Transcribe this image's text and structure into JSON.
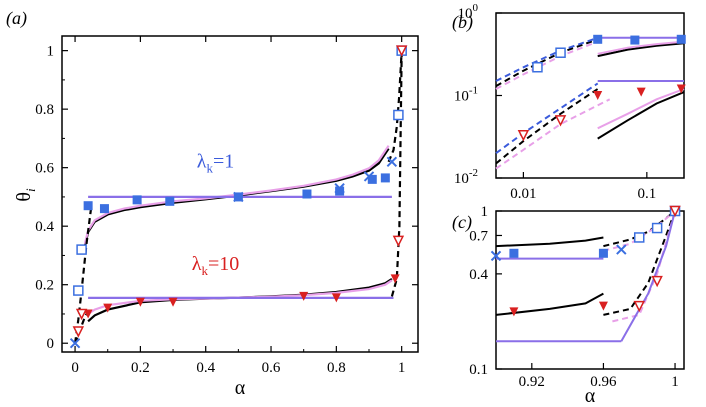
{
  "chart_data": [
    {
      "panel": "(a)",
      "type": "line",
      "xlabel": "α",
      "ylabel_main": "θ",
      "ylabel_sub": "i",
      "xlim": [
        -0.04,
        1.05
      ],
      "ylim": [
        -0.03,
        1.05
      ],
      "xticks": [
        "0",
        "0.2",
        "0.4",
        "0.6",
        "0.8",
        "1"
      ],
      "yticks": [
        "0",
        "0.2",
        "0.4",
        "0.6",
        "0.8",
        "1"
      ],
      "annotations": [
        {
          "text": "λ",
          "sub": "k",
          "rest": "=1",
          "color": "#3b5bdb",
          "x": 0.43,
          "y": 0.6
        },
        {
          "text": "λ",
          "sub": "k",
          "rest": "=10",
          "color": "#d92020",
          "x": 0.43,
          "y": 0.25
        }
      ],
      "series": [
        {
          "name": "λk=1 solid theory",
          "color": "#000000",
          "style": "solid",
          "x": [
            0.03,
            0.04,
            0.06,
            0.1,
            0.15,
            0.2,
            0.3,
            0.4,
            0.5,
            0.6,
            0.7,
            0.8,
            0.85,
            0.9,
            0.93,
            0.96
          ],
          "y": [
            0.33,
            0.38,
            0.415,
            0.44,
            0.455,
            0.465,
            0.48,
            0.492,
            0.505,
            0.52,
            0.535,
            0.555,
            0.57,
            0.59,
            0.615,
            0.665
          ]
        },
        {
          "name": "λk=1 pink theory",
          "color": "#e8a0e8",
          "style": "solid",
          "x": [
            0.03,
            0.04,
            0.06,
            0.1,
            0.15,
            0.2,
            0.3,
            0.4,
            0.5,
            0.6,
            0.7,
            0.8,
            0.85,
            0.9,
            0.93,
            0.96
          ],
          "y": [
            0.34,
            0.385,
            0.42,
            0.445,
            0.46,
            0.47,
            0.485,
            0.495,
            0.508,
            0.522,
            0.538,
            0.56,
            0.576,
            0.598,
            0.625,
            0.675
          ]
        },
        {
          "name": "λk=1 purple step",
          "color": "#8a6fe8",
          "style": "solid",
          "x": [
            0.04,
            0.97
          ],
          "y": [
            0.5,
            0.5
          ]
        },
        {
          "name": "λk=1 dashed left",
          "color": "#000000",
          "style": "dashed",
          "x": [
            0.0,
            0.01,
            0.02,
            0.035,
            0.05
          ],
          "y": [
            0.0,
            0.08,
            0.18,
            0.34,
            0.47
          ]
        },
        {
          "name": "λk=1 dashed right",
          "color": "#000000",
          "style": "dashed",
          "x": [
            0.96,
            0.975,
            0.985,
            0.992,
            1.0
          ],
          "y": [
            0.62,
            0.66,
            0.74,
            0.84,
            1.0
          ]
        },
        {
          "name": "λk=10 solid theory",
          "color": "#000000",
          "style": "solid",
          "x": [
            0.04,
            0.06,
            0.1,
            0.2,
            0.3,
            0.4,
            0.5,
            0.6,
            0.7,
            0.8,
            0.9,
            0.95,
            0.97
          ],
          "y": [
            0.075,
            0.095,
            0.115,
            0.14,
            0.148,
            0.152,
            0.156,
            0.16,
            0.166,
            0.175,
            0.19,
            0.205,
            0.22
          ]
        },
        {
          "name": "λk=10 pink theory",
          "color": "#e8a0e8",
          "style": "solid",
          "x": [
            0.04,
            0.06,
            0.1,
            0.2,
            0.3,
            0.4,
            0.5,
            0.6,
            0.7,
            0.8,
            0.9,
            0.95,
            0.97
          ],
          "y": [
            0.1,
            0.115,
            0.13,
            0.145,
            0.15,
            0.153,
            0.156,
            0.159,
            0.164,
            0.172,
            0.185,
            0.2,
            0.215
          ]
        },
        {
          "name": "λk=10 purple step",
          "color": "#8a6fe8",
          "style": "solid",
          "x": [
            0.04,
            0.975
          ],
          "y": [
            0.155,
            0.155
          ]
        },
        {
          "name": "λk=10 dashed left",
          "color": "#000000",
          "style": "dashed",
          "x": [
            0.0,
            0.01,
            0.02,
            0.03,
            0.045
          ],
          "y": [
            0.0,
            0.03,
            0.06,
            0.09,
            0.12
          ]
        },
        {
          "name": "λk=10 dashed right",
          "color": "#000000",
          "style": "dashed",
          "x": [
            0.97,
            0.985,
            0.993,
            1.0
          ],
          "y": [
            0.16,
            0.22,
            0.4,
            1.0
          ]
        }
      ],
      "points": [
        {
          "series": "λk=1 sim",
          "marker": "square",
          "color": "#3b6fe0",
          "x": [
            0.04,
            0.09,
            0.19,
            0.29,
            0.5,
            0.71,
            0.81,
            0.91,
            0.95
          ],
          "y": [
            0.47,
            0.46,
            0.49,
            0.485,
            0.5,
            0.51,
            0.52,
            0.56,
            0.565
          ]
        },
        {
          "series": "λk=1 open",
          "marker": "square-open",
          "color": "#3b6fe0",
          "x": [
            0.01,
            0.02,
            0.99,
            1.0
          ],
          "y": [
            0.18,
            0.32,
            0.78,
            1.0
          ]
        },
        {
          "series": "λk=1 cross",
          "marker": "x",
          "color": "#3b6fe0",
          "x": [
            0.0,
            0.5,
            0.81,
            0.9,
            0.97
          ],
          "y": [
            0.0,
            0.5,
            0.53,
            0.57,
            0.62
          ]
        },
        {
          "series": "λk=10 sim",
          "marker": "triangle-down",
          "color": "#d92020",
          "x": [
            0.04,
            0.1,
            0.2,
            0.3,
            0.7,
            0.8,
            0.98
          ],
          "y": [
            0.1,
            0.12,
            0.14,
            0.14,
            0.16,
            0.155,
            0.22
          ]
        },
        {
          "series": "λk=10 open",
          "marker": "triangle-down-open",
          "color": "#d92020",
          "x": [
            0.01,
            0.02,
            0.99,
            1.0
          ],
          "y": [
            0.04,
            0.1,
            0.35,
            1.0
          ]
        }
      ]
    },
    {
      "panel": "(b)",
      "type": "line",
      "xscale": "log",
      "yscale": "log",
      "xlim": [
        0.006,
        0.2
      ],
      "ylim": [
        0.01,
        1.0
      ],
      "xticks": [
        "0.01",
        "0.1"
      ],
      "ytick_labels": [
        {
          "base": "10",
          "exp": "0",
          "value": 1.0
        },
        {
          "base": "10",
          "exp": "-1",
          "value": 0.1
        },
        {
          "base": "10",
          "exp": "-2",
          "value": 0.01
        }
      ]
    },
    {
      "panel": "(c)",
      "type": "line",
      "yscale": "log",
      "xlabel": "α",
      "xlim": [
        0.9,
        1.005
      ],
      "ylim": [
        0.1,
        1.0
      ],
      "xticks": [
        "0.92",
        "0.96",
        "1"
      ],
      "yticks": [
        "0.1",
        "0.4",
        "0.7",
        "1"
      ]
    }
  ]
}
